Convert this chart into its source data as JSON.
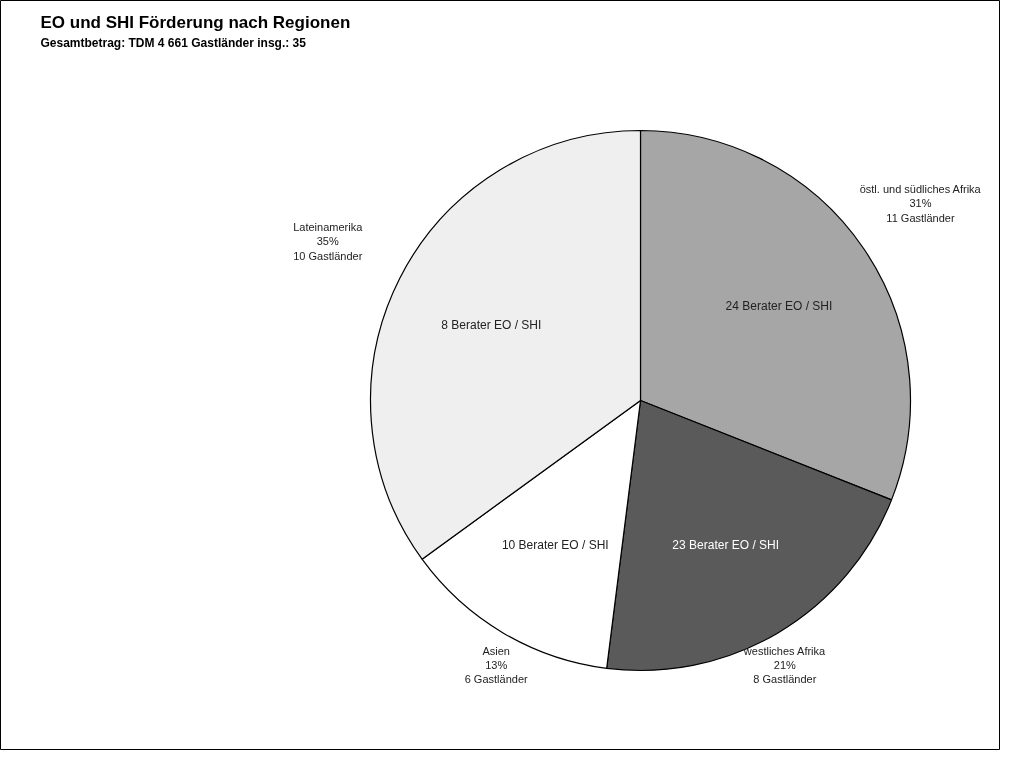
{
  "chart_data": {
    "type": "pie",
    "title": "EO und SHI Förderung nach Regionen",
    "subtitle": "Gesamtbetrag: TDM 4 661     Gastländer insg.: 35",
    "categories": [
      "östl. und südliches Afrika",
      "westliches Afrika",
      "Asien",
      "Lateinamerika"
    ],
    "values": [
      31,
      21,
      13,
      35
    ],
    "value_labels": [
      "31%",
      "21%",
      "13%",
      "35%"
    ],
    "colors": [
      "#a6a6a6",
      "#5a5a5a",
      "#ffffff",
      "#efefef"
    ],
    "annotations": [
      "11 Gastländer",
      "8 Gastländer",
      "6 Gastländer",
      "10 Gastländer",
      "24 Berater EO / SHI",
      "23 Berater EO / SHI",
      "10 Berater EO / SHI",
      "8 Berater EO / SHI"
    ]
  }
}
